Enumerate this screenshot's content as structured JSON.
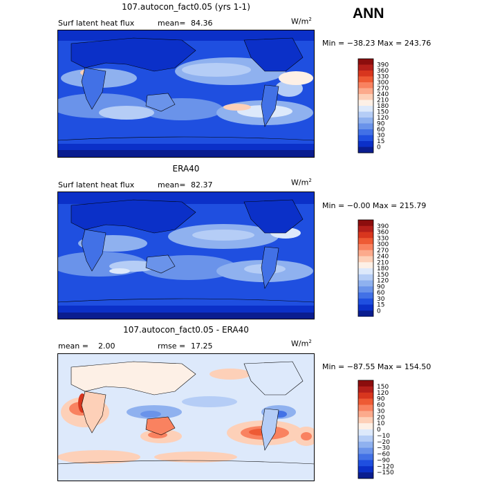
{
  "season": "ANN",
  "panels": [
    {
      "title": "107.autocon_fact0.05 (yrs 1-1)",
      "subtitle_left": "Surf latent heat flux",
      "stat_label": "mean=",
      "stat_value": "84.36",
      "units": "W/m",
      "units_exp": "2",
      "minmax": "Min = −38.23 Max = 243.76",
      "colorbar": {
        "levels": [
          "390",
          "360",
          "330",
          "300",
          "270",
          "240",
          "210",
          "180",
          "150",
          "120",
          "90",
          "60",
          "30",
          "15",
          "0"
        ],
        "colors": [
          "#8c0d0d",
          "#b51f1a",
          "#d8361e",
          "#ee5a34",
          "#f98260",
          "#fcaa8c",
          "#fdd0b8",
          "#fdf0e6",
          "#dde9fb",
          "#b5cdf6",
          "#8fb1ef",
          "#6a93ea",
          "#4271e6",
          "#1f4fe0",
          "#0b30c8",
          "#0a1d8f"
        ]
      }
    },
    {
      "title": "ERA40",
      "subtitle_left": "Surf latent heat flux",
      "stat_label": "mean=",
      "stat_value": "82.37",
      "units": "W/m",
      "units_exp": "2",
      "minmax": "Min =  −0.00 Max = 215.79",
      "colorbar": {
        "levels": [
          "390",
          "360",
          "330",
          "300",
          "270",
          "240",
          "210",
          "180",
          "150",
          "120",
          "90",
          "60",
          "30",
          "15",
          "0"
        ],
        "colors": [
          "#8c0d0d",
          "#b51f1a",
          "#d8361e",
          "#ee5a34",
          "#f98260",
          "#fcaa8c",
          "#fdd0b8",
          "#fdf0e6",
          "#dde9fb",
          "#b5cdf6",
          "#8fb1ef",
          "#6a93ea",
          "#4271e6",
          "#1f4fe0",
          "#0b30c8",
          "#0a1d8f"
        ]
      }
    },
    {
      "title": "107.autocon_fact0.05 - ERA40",
      "mean_label": "mean =",
      "mean_value": "2.00",
      "rmse_label": "rmse =",
      "rmse_value": "17.25",
      "units": "W/m",
      "units_exp": "2",
      "minmax": "Min = −87.55 Max = 154.50",
      "colorbar": {
        "levels": [
          "150",
          "120",
          "90",
          "60",
          "30",
          "20",
          "10",
          "0",
          "−10",
          "−20",
          "−30",
          "−60",
          "−90",
          "−120",
          "−150"
        ],
        "colors": [
          "#8c0d0d",
          "#b51f1a",
          "#d8361e",
          "#ee5a34",
          "#f98260",
          "#fcaa8c",
          "#fdd0b8",
          "#fdf0e6",
          "#dde9fb",
          "#b5cdf6",
          "#8fb1ef",
          "#6a93ea",
          "#4271e6",
          "#1f4fe0",
          "#0b30c8",
          "#0a1d8f"
        ]
      }
    }
  ],
  "chart_data": [
    {
      "type": "heatmap",
      "title": "107.autocon_fact0.05 (yrs 1-1)",
      "variable": "Surf latent heat flux",
      "units": "W/m2",
      "mean": 84.36,
      "min": -38.23,
      "max": 243.76,
      "contour_levels": [
        0,
        15,
        30,
        60,
        90,
        120,
        150,
        180,
        210,
        240,
        270,
        300,
        330,
        360,
        390
      ]
    },
    {
      "type": "heatmap",
      "title": "ERA40",
      "variable": "Surf latent heat flux",
      "units": "W/m2",
      "mean": 82.37,
      "min": -0.0,
      "max": 215.79,
      "contour_levels": [
        0,
        15,
        30,
        60,
        90,
        120,
        150,
        180,
        210,
        240,
        270,
        300,
        330,
        360,
        390
      ]
    },
    {
      "type": "heatmap",
      "title": "107.autocon_fact0.05 - ERA40",
      "units": "W/m2",
      "mean": 2.0,
      "rmse": 17.25,
      "min": -87.55,
      "max": 154.5,
      "contour_levels": [
        -150,
        -120,
        -90,
        -60,
        -30,
        -20,
        -10,
        0,
        10,
        20,
        30,
        60,
        90,
        120,
        150
      ]
    }
  ]
}
